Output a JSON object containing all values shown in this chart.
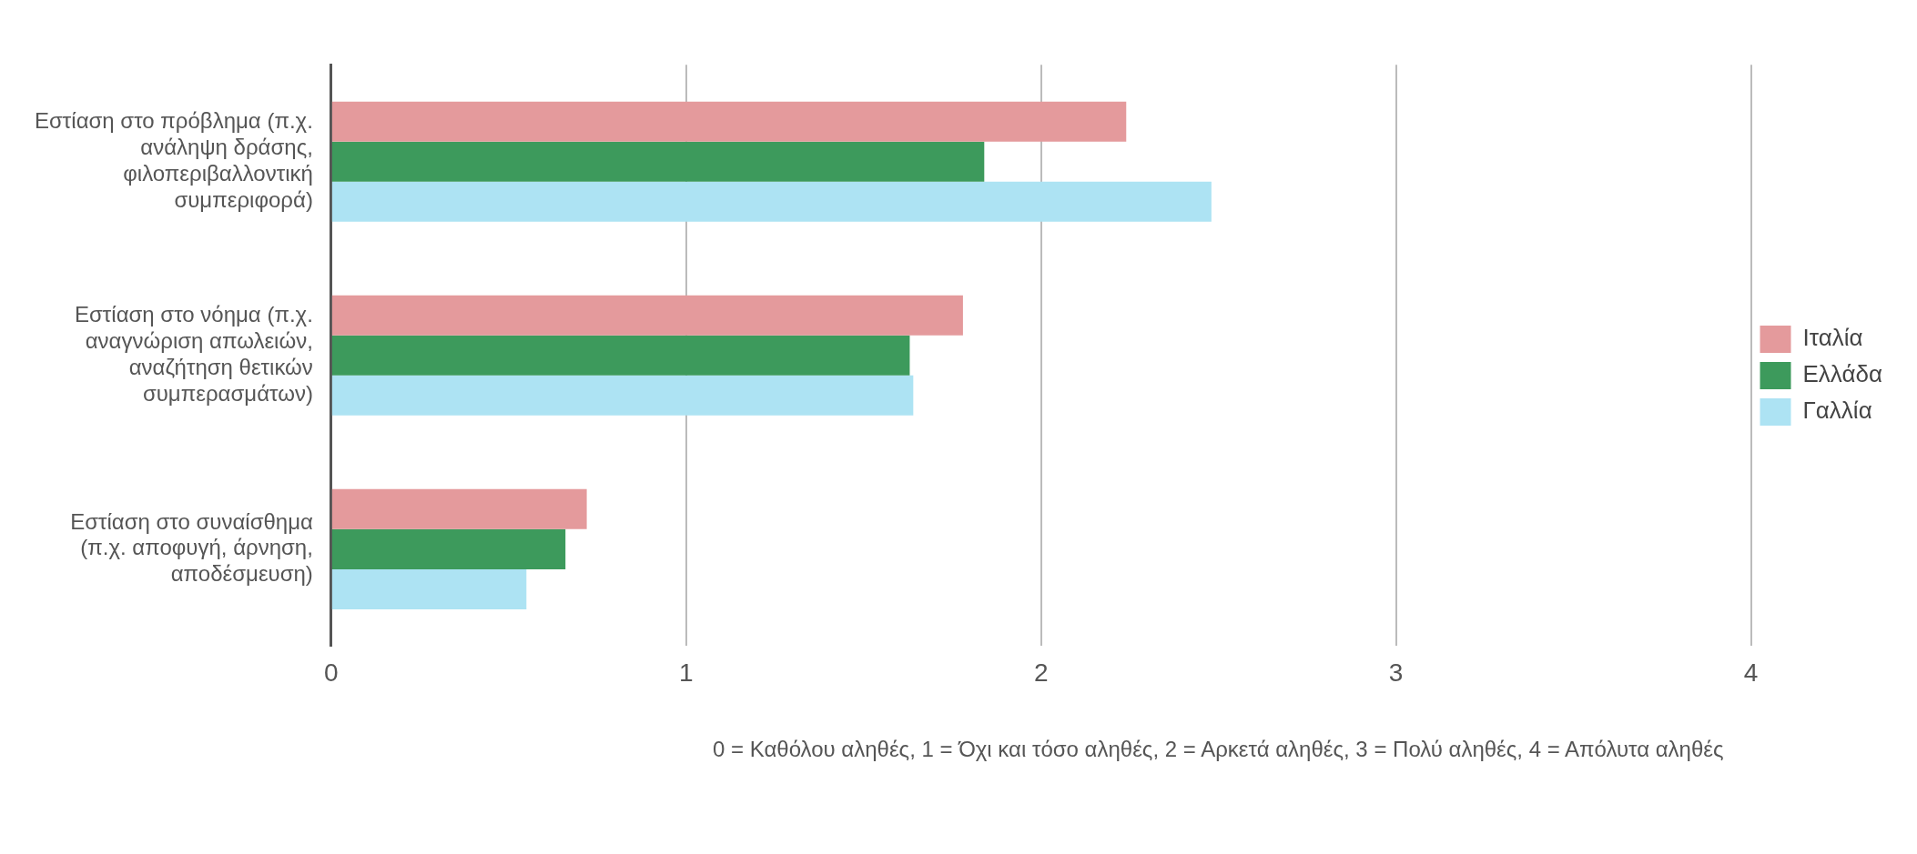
{
  "chart_data": {
    "type": "bar",
    "orientation": "horizontal",
    "categories": [
      "Εστίαση στο πρόβλημα (π.χ. ανάληψη δράσης, φιλοπεριβαλλοντική συμπεριφορά)",
      "Εστίαση στο νόημα (π.χ. αναγνώριση απωλειών, αναζήτηση θετικών συμπερασμάτων)",
      "Εστίαση στο συναίσθημα (π.χ. αποφυγή, άρνηση, αποδέσμευση)"
    ],
    "series": [
      {
        "name": "Ιταλία",
        "color": "#e49a9c",
        "values": [
          2.24,
          1.78,
          0.72
        ]
      },
      {
        "name": "Ελλάδα",
        "color": "#3d9a5c",
        "values": [
          1.84,
          1.63,
          0.66
        ]
      },
      {
        "name": "Γαλλία",
        "color": "#ade3f3",
        "values": [
          2.48,
          1.64,
          0.55
        ]
      }
    ],
    "xlim": [
      0,
      4
    ],
    "xticks": [
      0,
      1,
      2,
      3,
      4
    ],
    "grid": "x",
    "legend": "right",
    "annotations": [
      "0 = Καθόλου αληθές, 1 = Όχι και τόσο αληθές, 2 = Αρκετά αληθές, 3 = Πολύ αληθές, 4 = Απόλυτα αληθές"
    ]
  }
}
